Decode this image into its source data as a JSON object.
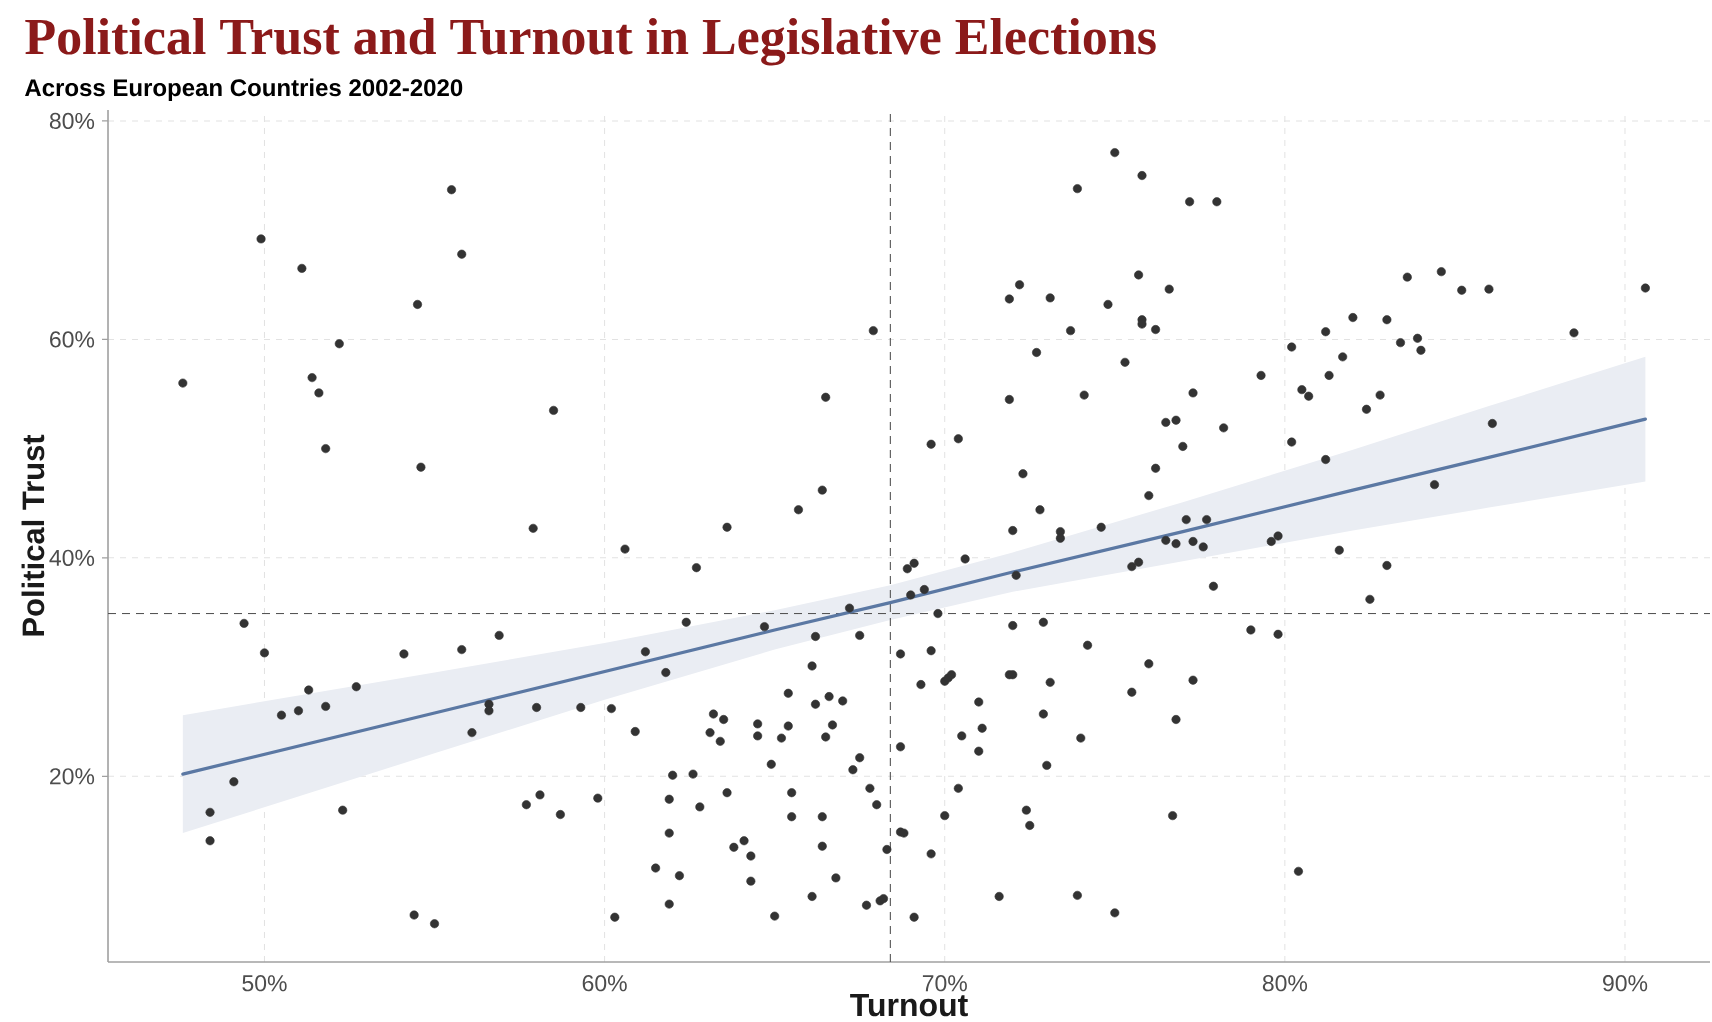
{
  "chart_data": {
    "type": "scatter",
    "title": "Political Trust and Turnout in Legislative Elections",
    "subtitle": "Across European Countries 2002-2020",
    "xlabel": "Turnout",
    "ylabel": "Political Trust",
    "xlim": [
      45.4,
      92.5
    ],
    "ylim": [
      3.0,
      81.0
    ],
    "xticks": [
      {
        "value": 50,
        "label": "50%"
      },
      {
        "value": 60,
        "label": "60%"
      },
      {
        "value": 70,
        "label": "70%"
      },
      {
        "value": 80,
        "label": "80%"
      },
      {
        "value": 90,
        "label": "90%"
      }
    ],
    "yticks": [
      {
        "value": 20,
        "label": "20%"
      },
      {
        "value": 40,
        "label": "40%"
      },
      {
        "value": 60,
        "label": "60%"
      },
      {
        "value": 80,
        "label": "80%"
      }
    ],
    "grid": true,
    "marker": "circle",
    "ref_lines": [
      {
        "axis": "x",
        "value": 68.4,
        "color": "#555555",
        "line_style": "dashed"
      },
      {
        "axis": "y",
        "value": 34.9,
        "color": "#555555",
        "line_style": "dashed"
      }
    ],
    "series": [
      {
        "color": "#333333",
        "x": [
          55.5,
          49.9,
          55.8,
          51.1,
          54.5,
          52.2,
          47.6,
          51.4,
          51.6,
          58.5,
          51.8,
          54.6,
          57.9,
          75.0,
          75.8,
          73.9,
          72.2,
          71.9,
          73.1,
          74.8,
          75.7,
          76.6,
          75.8,
          75.8,
          76.2,
          73.7,
          67.9,
          72.7,
          75.3,
          66.5,
          71.9,
          74.1,
          76.5,
          76.8,
          77.0,
          69.6,
          70.4,
          72.3,
          76.2,
          76.0,
          66.4,
          65.7,
          63.6,
          72.8,
          72.0,
          73.4,
          74.6,
          77.2,
          78.0,
          83.6,
          84.6,
          85.2,
          86.0,
          90.6,
          88.5,
          82.0,
          83.0,
          81.2,
          80.2,
          81.7,
          83.4,
          83.9,
          84.0,
          79.3,
          81.3,
          77.3,
          80.5,
          80.7,
          82.8,
          82.4,
          78.2,
          80.2,
          81.2,
          86.1,
          84.4,
          77.1,
          77.7,
          77.6,
          77.3,
          79.8,
          79.6,
          81.6,
          83.0,
          77.9,
          82.5,
          79.0,
          79.8,
          77.3,
          80.4,
          60.6,
          49.4,
          50.0,
          54.1,
          55.8,
          56.9,
          51.3,
          52.7,
          50.5,
          51.0,
          51.8,
          56.6,
          56.6,
          58.0,
          59.3,
          60.2,
          56.1,
          61.2,
          60.9,
          49.1,
          48.4,
          48.4,
          52.3,
          57.7,
          58.1,
          58.7,
          59.8,
          54.4,
          55.0,
          60.3,
          62.7,
          68.9,
          69.1,
          70.6,
          69.0,
          69.4,
          69.8,
          72.1,
          73.4,
          75.5,
          75.7,
          76.5,
          76.8,
          72.0,
          72.9,
          62.4,
          64.7,
          67.2,
          66.2,
          67.5,
          61.8,
          68.7,
          69.6,
          66.1,
          74.2,
          76.0,
          69.3,
          70.0,
          70.1,
          70.2,
          71.9,
          72.0,
          73.1,
          75.5,
          65.4,
          66.6,
          67.0,
          66.2,
          71.0,
          63.2,
          63.5,
          64.5,
          65.4,
          66.7,
          63.1,
          63.4,
          64.5,
          65.2,
          66.5,
          70.5,
          71.1,
          72.9,
          76.8,
          74.0,
          68.7,
          71.0,
          64.9,
          67.5,
          67.3,
          62.0,
          62.6,
          73.0,
          70.4,
          63.6,
          65.5,
          61.9,
          62.8,
          68.0,
          67.8,
          65.5,
          66.4,
          70.0,
          72.4,
          72.5,
          76.7,
          68.7,
          68.8,
          61.9,
          68.3,
          69.6,
          64.1,
          63.8,
          64.3,
          66.4,
          61.5,
          62.2,
          64.3,
          66.8,
          61.9,
          66.1,
          67.7,
          68.1,
          68.2,
          65.0,
          69.1,
          71.6,
          73.9,
          75.0
        ],
        "values": [
          73.7,
          69.2,
          67.8,
          66.5,
          63.2,
          59.6,
          56.0,
          56.5,
          55.1,
          53.5,
          50.0,
          48.3,
          42.7,
          77.1,
          75.0,
          73.8,
          65.0,
          63.7,
          63.8,
          63.2,
          65.9,
          64.6,
          61.8,
          61.4,
          60.9,
          60.8,
          60.8,
          58.8,
          57.9,
          54.7,
          54.5,
          54.9,
          52.4,
          52.6,
          50.2,
          50.4,
          50.9,
          47.7,
          48.2,
          45.7,
          46.2,
          44.4,
          42.8,
          44.4,
          42.5,
          42.4,
          42.8,
          72.6,
          72.6,
          65.7,
          66.2,
          64.5,
          64.6,
          64.7,
          60.6,
          62.0,
          61.8,
          60.7,
          59.3,
          58.4,
          59.7,
          60.1,
          59.0,
          56.7,
          56.7,
          55.1,
          55.4,
          54.8,
          54.9,
          53.6,
          51.9,
          50.6,
          49.0,
          52.3,
          46.7,
          43.5,
          43.5,
          41.0,
          41.5,
          42.0,
          41.5,
          40.7,
          39.3,
          37.4,
          36.2,
          33.4,
          33.0,
          28.8,
          11.3,
          40.8,
          34.0,
          31.3,
          31.2,
          31.6,
          32.9,
          27.9,
          28.2,
          25.6,
          26.0,
          26.4,
          26.6,
          26.0,
          26.3,
          26.3,
          26.2,
          24.0,
          31.4,
          24.1,
          19.5,
          16.7,
          14.1,
          16.9,
          17.4,
          18.3,
          16.5,
          18.0,
          7.3,
          6.5,
          7.1,
          39.1,
          39.0,
          39.5,
          39.9,
          36.6,
          37.1,
          34.9,
          38.4,
          41.8,
          39.2,
          39.6,
          41.6,
          41.3,
          33.8,
          34.1,
          34.1,
          33.7,
          35.4,
          32.8,
          32.9,
          29.5,
          31.2,
          31.5,
          30.1,
          32.0,
          30.3,
          28.4,
          28.7,
          29.0,
          29.3,
          29.3,
          29.3,
          28.6,
          27.7,
          27.6,
          27.3,
          26.9,
          26.6,
          26.8,
          25.7,
          25.2,
          24.8,
          24.6,
          24.7,
          24.0,
          23.2,
          23.7,
          23.5,
          23.6,
          23.7,
          24.4,
          25.7,
          25.2,
          23.5,
          22.7,
          22.3,
          21.1,
          21.7,
          20.6,
          20.1,
          20.2,
          21.0,
          18.9,
          18.5,
          18.5,
          17.9,
          17.2,
          17.4,
          18.9,
          16.3,
          16.3,
          16.4,
          16.9,
          15.5,
          16.4,
          14.9,
          14.8,
          14.8,
          13.3,
          12.9,
          14.1,
          13.5,
          12.7,
          13.6,
          11.6,
          10.9,
          10.4,
          10.7,
          8.3,
          9.0,
          8.2,
          8.6,
          8.8,
          7.2,
          7.1,
          9.0,
          9.1,
          7.5
        ]
      },
      {
        "type": "line",
        "color": "#5b78a3",
        "marker": "none",
        "x": [
          47.6,
          55,
          60,
          65,
          68.4,
          72,
          77,
          82,
          86,
          90.6
        ],
        "values": [
          20.2,
          25.8,
          29.6,
          33.4,
          35.9,
          38.7,
          42.4,
          46.2,
          49.2,
          52.7
        ],
        "lower": [
          14.8,
          22.1,
          27.0,
          31.6,
          34.3,
          36.9,
          39.7,
          42.5,
          44.6,
          47.0
        ],
        "upper": [
          25.6,
          29.5,
          32.2,
          35.2,
          37.5,
          40.5,
          45.1,
          49.9,
          53.9,
          58.4
        ]
      }
    ]
  }
}
